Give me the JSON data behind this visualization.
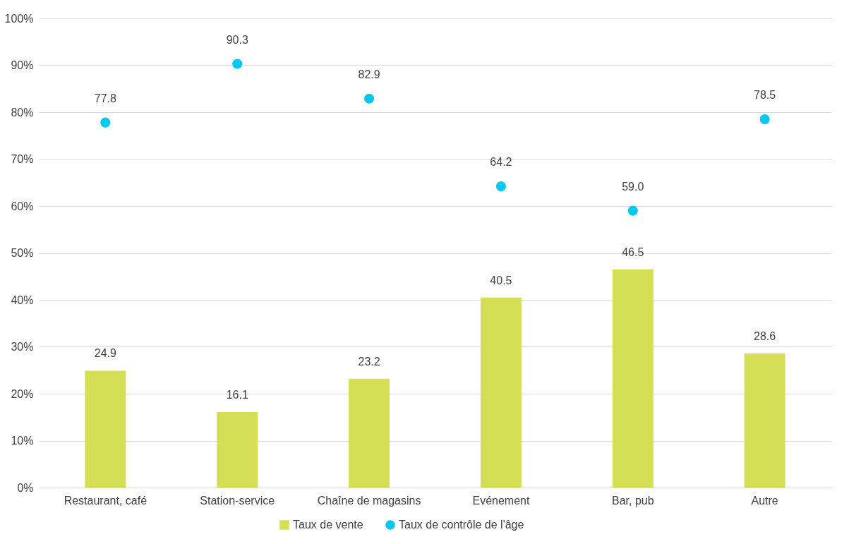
{
  "chart_data": {
    "type": "bar",
    "categories": [
      "Restaurant, café",
      "Station-service",
      "Chaîne de magasins",
      "Evénement",
      "Bar, pub",
      "Autre"
    ],
    "series": [
      {
        "name": "Taux de vente",
        "color": "#d4df55",
        "values": [
          24.9,
          16.1,
          23.2,
          40.5,
          46.5,
          28.6
        ],
        "value_labels": [
          "24.9",
          "16.1",
          "23.2",
          "40.5",
          "46.5",
          "28.6"
        ]
      },
      {
        "name": "Taux de contrôle de l'âge",
        "type": "scatter",
        "color": "#00c8f0",
        "values": [
          77.8,
          90.3,
          82.9,
          64.2,
          59.0,
          78.5
        ],
        "value_labels": [
          "77.8",
          "90.3",
          "82.9",
          "64.2",
          "59.0",
          "78.5"
        ]
      }
    ],
    "ylim": [
      0,
      100
    ],
    "yticks": [
      {
        "value": 0,
        "label": "0%"
      },
      {
        "value": 10,
        "label": "10%"
      },
      {
        "value": 20,
        "label": "20%"
      },
      {
        "value": 30,
        "label": "30%"
      },
      {
        "value": 40,
        "label": "40%"
      },
      {
        "value": 50,
        "label": "50%"
      },
      {
        "value": 60,
        "label": "60%"
      },
      {
        "value": 70,
        "label": "70%"
      },
      {
        "value": 80,
        "label": "80%"
      },
      {
        "value": 90,
        "label": "90%"
      },
      {
        "value": 100,
        "label": "100%"
      }
    ],
    "grid": "y",
    "legend": "bottom",
    "marker": "circle"
  }
}
